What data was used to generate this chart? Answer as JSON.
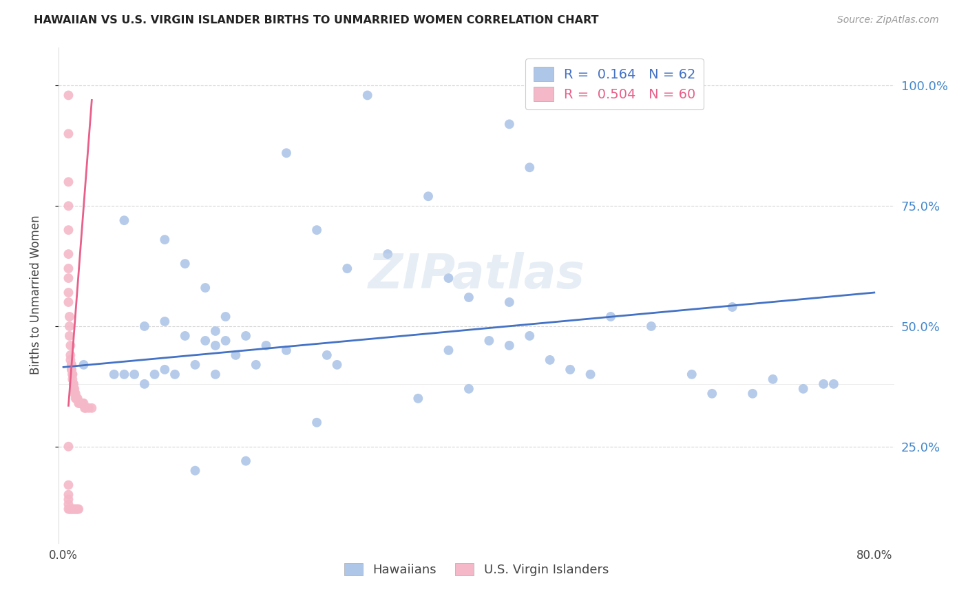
{
  "title": "HAWAIIAN VS U.S. VIRGIN ISLANDER BIRTHS TO UNMARRIED WOMEN CORRELATION CHART",
  "source": "Source: ZipAtlas.com",
  "ylabel": "Births to Unmarried Women",
  "ytick_values": [
    0.25,
    0.5,
    0.75,
    1.0
  ],
  "ytick_labels": [
    "25.0%",
    "50.0%",
    "75.0%",
    "100.0%"
  ],
  "xlim": [
    -0.005,
    0.82
  ],
  "ylim": [
    0.05,
    1.08
  ],
  "blue_R": 0.164,
  "blue_N": 62,
  "pink_R": 0.504,
  "pink_N": 60,
  "watermark": "ZIPatlas",
  "hawaiians_x": [
    0.22,
    0.3,
    0.36,
    0.44,
    0.25,
    0.28,
    0.32,
    0.38,
    0.4,
    0.46,
    0.06,
    0.1,
    0.12,
    0.14,
    0.16,
    0.18,
    0.2,
    0.08,
    0.1,
    0.12,
    0.14,
    0.15,
    0.15,
    0.17,
    0.19,
    0.26,
    0.27,
    0.38,
    0.42,
    0.48,
    0.5,
    0.52,
    0.44,
    0.46,
    0.54,
    0.58,
    0.62,
    0.66,
    0.7,
    0.75,
    0.02,
    0.05,
    0.06,
    0.07,
    0.08,
    0.09,
    0.1,
    0.11,
    0.13,
    0.15,
    0.35,
    0.4,
    0.44,
    0.64,
    0.68,
    0.73,
    0.76,
    0.16,
    0.22,
    0.25,
    0.18,
    0.13
  ],
  "hawaiians_y": [
    0.86,
    0.98,
    0.77,
    0.92,
    0.7,
    0.62,
    0.65,
    0.6,
    0.56,
    0.83,
    0.72,
    0.68,
    0.63,
    0.58,
    0.52,
    0.48,
    0.46,
    0.5,
    0.51,
    0.48,
    0.47,
    0.49,
    0.46,
    0.44,
    0.42,
    0.44,
    0.42,
    0.45,
    0.47,
    0.43,
    0.41,
    0.4,
    0.55,
    0.48,
    0.52,
    0.5,
    0.4,
    0.54,
    0.39,
    0.38,
    0.42,
    0.4,
    0.4,
    0.4,
    0.38,
    0.4,
    0.41,
    0.4,
    0.42,
    0.4,
    0.35,
    0.37,
    0.46,
    0.36,
    0.36,
    0.37,
    0.38,
    0.47,
    0.45,
    0.3,
    0.22,
    0.2
  ],
  "virgin_islanders_x": [
    0.005,
    0.005,
    0.005,
    0.005,
    0.005,
    0.005,
    0.005,
    0.005,
    0.005,
    0.005,
    0.006,
    0.006,
    0.006,
    0.007,
    0.007,
    0.007,
    0.008,
    0.008,
    0.008,
    0.008,
    0.009,
    0.009,
    0.009,
    0.01,
    0.01,
    0.01,
    0.011,
    0.011,
    0.012,
    0.012,
    0.013,
    0.013,
    0.014,
    0.015,
    0.016,
    0.016,
    0.017,
    0.018,
    0.019,
    0.02,
    0.021,
    0.022,
    0.025,
    0.028,
    0.005,
    0.005,
    0.005,
    0.005,
    0.005,
    0.005,
    0.006,
    0.007,
    0.008,
    0.009,
    0.01,
    0.011,
    0.012,
    0.013,
    0.014,
    0.015
  ],
  "virgin_islanders_y": [
    0.98,
    0.9,
    0.8,
    0.75,
    0.7,
    0.65,
    0.62,
    0.6,
    0.57,
    0.55,
    0.52,
    0.5,
    0.48,
    0.46,
    0.44,
    0.43,
    0.42,
    0.42,
    0.41,
    0.41,
    0.4,
    0.4,
    0.39,
    0.38,
    0.38,
    0.37,
    0.37,
    0.36,
    0.36,
    0.35,
    0.35,
    0.35,
    0.35,
    0.34,
    0.34,
    0.34,
    0.34,
    0.34,
    0.34,
    0.34,
    0.33,
    0.33,
    0.33,
    0.33,
    0.25,
    0.17,
    0.15,
    0.14,
    0.13,
    0.12,
    0.12,
    0.12,
    0.12,
    0.12,
    0.12,
    0.12,
    0.12,
    0.12,
    0.12,
    0.12
  ],
  "blue_line_x": [
    0.0,
    0.8
  ],
  "blue_line_y": [
    0.415,
    0.57
  ],
  "pink_line_x": [
    0.005,
    0.028
  ],
  "pink_line_y": [
    0.335,
    0.97
  ],
  "background_color": "#ffffff",
  "grid_color": "#cccccc",
  "blue_scatter_color": "#aec6e8",
  "pink_scatter_color": "#f5b8c8",
  "blue_line_color": "#4472c4",
  "pink_line_color": "#e8608a",
  "right_tick_color": "#4488cc",
  "marker_size": 100
}
